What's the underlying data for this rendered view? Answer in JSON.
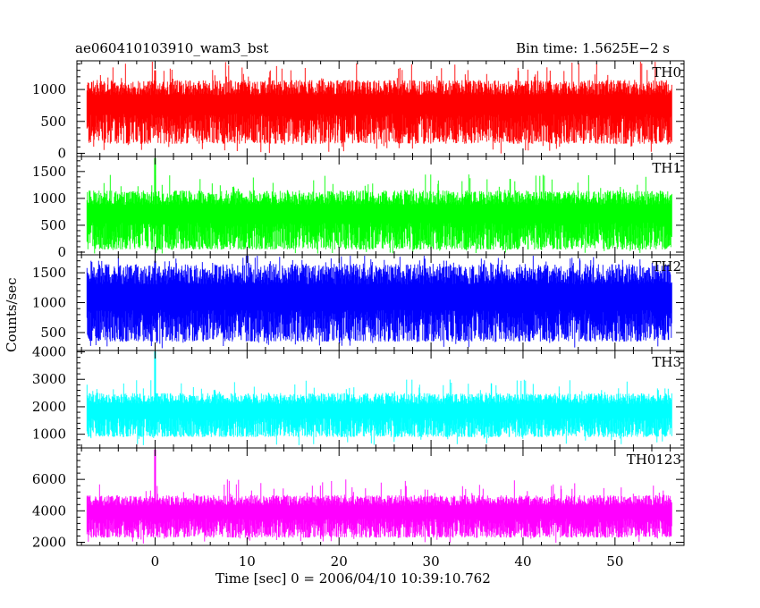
{
  "chart_data": {
    "type": "line",
    "title_left": "ae060410103910_wam3_bst",
    "title_right": "Bin time: 1.5625E−2 s",
    "xlabel": "Time [sec] 0 = 2006/04/10 10:39:10.762",
    "ylabel": "Counts/sec",
    "xlim": [
      -8.5,
      57.5
    ],
    "data_range": [
      -7.4,
      56.2
    ],
    "x_ticks": [
      0,
      10,
      20,
      30,
      40,
      50
    ],
    "x_tick_labels": [
      "0",
      "10",
      "20",
      "30",
      "40",
      "50"
    ],
    "grid": false,
    "panels": [
      {
        "name": "TH0",
        "color": "#ff0000",
        "ylim": [
          -50,
          1450
        ],
        "y_ticks": [
          0,
          500,
          1000
        ],
        "y_tick_labels": [
          "0",
          "500",
          "1000"
        ],
        "min_typical": 150,
        "max_typical": 1150,
        "mean": 620,
        "peak": 1450,
        "burst_peak": 1300
      },
      {
        "name": "TH1",
        "color": "#00ff00",
        "ylim": [
          -50,
          1780
        ],
        "y_ticks": [
          0,
          500,
          1000,
          1500
        ],
        "y_tick_labels": [
          "0",
          "500",
          "1000",
          "1500"
        ],
        "min_typical": 50,
        "max_typical": 1150,
        "mean": 550,
        "peak": 1450,
        "burst_peak": 1750
      },
      {
        "name": "TH2",
        "color": "#0000ff",
        "ylim": [
          200,
          1800
        ],
        "y_ticks": [
          500,
          1000,
          1500
        ],
        "y_tick_labels": [
          "500",
          "1000",
          "1500"
        ],
        "min_typical": 350,
        "max_typical": 1650,
        "mean": 880,
        "peak": 1800,
        "burst_peak": 1700
      },
      {
        "name": "TH3",
        "color": "#00ffff",
        "ylim": [
          500,
          4050
        ],
        "y_ticks": [
          1000,
          2000,
          3000,
          4000
        ],
        "y_tick_labels": [
          "1000",
          "2000",
          "3000",
          "4000"
        ],
        "min_typical": 900,
        "max_typical": 2500,
        "mean": 1600,
        "peak": 3000,
        "burst_peak": 4050
      },
      {
        "name": "TH0123",
        "color": "#ff00ff",
        "ylim": [
          1800,
          8000
        ],
        "y_ticks": [
          2000,
          4000,
          6000
        ],
        "y_tick_labels": [
          "2000",
          "4000",
          "6000"
        ],
        "min_typical": 2300,
        "max_typical": 5000,
        "mean": 3500,
        "peak": 6000,
        "burst_peak": 7900
      }
    ]
  }
}
